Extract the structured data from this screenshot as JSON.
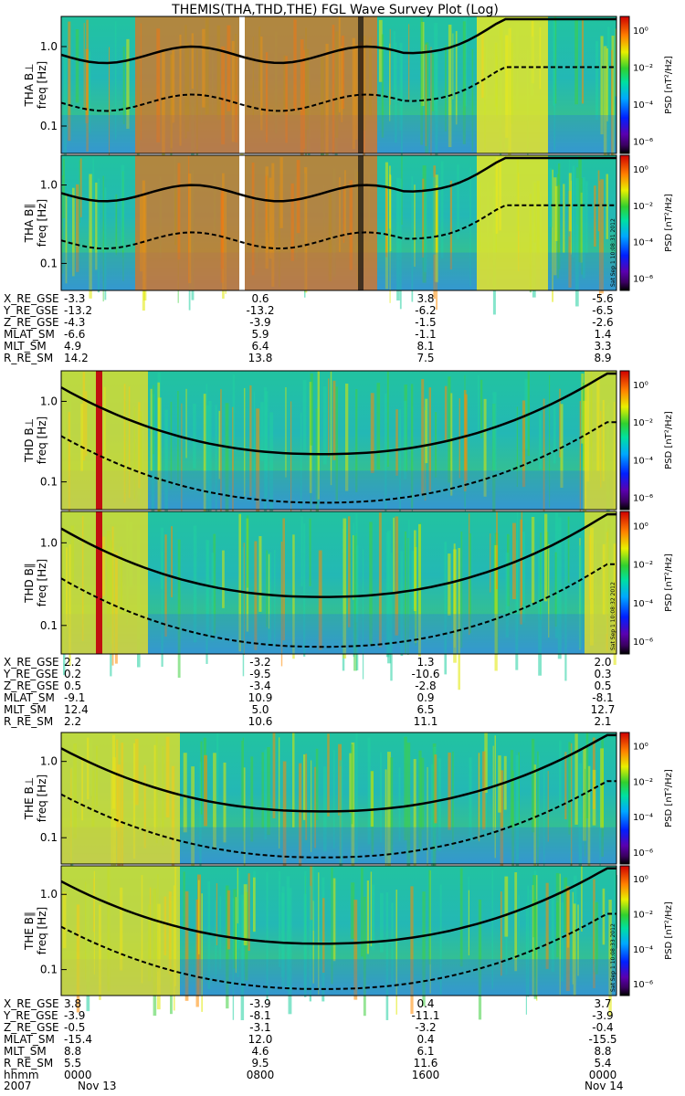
{
  "title": "THEMIS(THA,THD,THE) FGL Wave Survey Plot (Log)",
  "colorbar_unit": "PSD [nT²/Hz]",
  "colorbar_ticks": [
    "10⁰",
    "10⁻²",
    "10⁻⁴",
    "10⁻⁶"
  ],
  "freq_label": "freq [Hz]",
  "chart_data": [
    {
      "type": "heatmap",
      "probe": "THA",
      "panels": [
        {
          "label": "THA B⊥",
          "yticks": [
            "1.0",
            "0.1"
          ],
          "stamp": ""
        },
        {
          "label": "THA B∥",
          "yticks": [
            "1.0",
            "0.1"
          ],
          "stamp": "Sat Sep 1 10:08:31 2012"
        }
      ],
      "scale": "log",
      "ephemeris": [
        {
          "name": "X_RE_GSE",
          "values": [
            "-3.3",
            "0.6",
            "3.8",
            "-5.6"
          ]
        },
        {
          "name": "Y_RE_GSE",
          "values": [
            "-13.2",
            "-13.2",
            "-6.2",
            "-6.5"
          ]
        },
        {
          "name": "Z_RE_GSE",
          "values": [
            "-4.3",
            "-3.9",
            "-1.5",
            "-2.6"
          ]
        },
        {
          "name": "MLAT_SM",
          "values": [
            "-6.6",
            "5.9",
            "-1.1",
            "1.4"
          ]
        },
        {
          "name": "MLT_SM",
          "values": [
            "4.9",
            "6.4",
            "8.1",
            "3.3"
          ]
        },
        {
          "name": "R_RE_SM",
          "values": [
            "14.2",
            "13.8",
            "7.5",
            "8.9"
          ]
        }
      ]
    },
    {
      "type": "heatmap",
      "probe": "THD",
      "panels": [
        {
          "label": "THD B⊥",
          "yticks": [
            "1.0",
            "0.1"
          ],
          "stamp": ""
        },
        {
          "label": "THD B∥",
          "yticks": [
            "1.0",
            "0.1"
          ],
          "stamp": "Sat Sep 1 10:08:32 2012"
        }
      ],
      "scale": "log",
      "ephemeris": [
        {
          "name": "X_RE_GSE",
          "values": [
            "2.2",
            "-3.2",
            "1.3",
            "2.0"
          ]
        },
        {
          "name": "Y_RE_GSE",
          "values": [
            "0.2",
            "-9.5",
            "-10.6",
            "0.3"
          ]
        },
        {
          "name": "Z_RE_GSE",
          "values": [
            "0.5",
            "-3.4",
            "-2.8",
            "0.5"
          ]
        },
        {
          "name": "MLAT_SM",
          "values": [
            "-9.1",
            "10.9",
            "0.9",
            "-8.1"
          ]
        },
        {
          "name": "MLT_SM",
          "values": [
            "12.4",
            "5.0",
            "6.5",
            "12.7"
          ]
        },
        {
          "name": "R_RE_SM",
          "values": [
            "2.2",
            "10.6",
            "11.1",
            "2.1"
          ]
        }
      ]
    },
    {
      "type": "heatmap",
      "probe": "THE",
      "panels": [
        {
          "label": "THE B⊥",
          "yticks": [
            "1.0",
            "0.1"
          ],
          "stamp": ""
        },
        {
          "label": "THE B∥",
          "yticks": [
            "1.0",
            "0.1"
          ],
          "stamp": "Sat Sep 1 10:08:33 2012"
        }
      ],
      "scale": "log",
      "ephemeris": [
        {
          "name": "X_RE_GSE",
          "values": [
            "3.8",
            "-3.9",
            "0.4",
            "3.7"
          ]
        },
        {
          "name": "Y_RE_GSE",
          "values": [
            "-3.9",
            "-8.1",
            "-11.1",
            "-3.9"
          ]
        },
        {
          "name": "Z_RE_GSE",
          "values": [
            "-0.5",
            "-3.1",
            "-3.2",
            "-0.4"
          ]
        },
        {
          "name": "MLAT_SM",
          "values": [
            "-15.4",
            "12.0",
            "0.4",
            "-15.5"
          ]
        },
        {
          "name": "MLT_SM",
          "values": [
            "8.8",
            "4.6",
            "6.1",
            "8.8"
          ]
        },
        {
          "name": "R_RE_SM",
          "values": [
            "5.5",
            "9.5",
            "11.6",
            "5.4"
          ]
        }
      ],
      "time_axis": {
        "hhmm_label": "hhmm",
        "hhmm": [
          "0000",
          "0800",
          "1600",
          "0000"
        ],
        "date_label": "2007",
        "dates": [
          "Nov 13",
          "",
          "",
          "Nov 14"
        ]
      }
    }
  ]
}
